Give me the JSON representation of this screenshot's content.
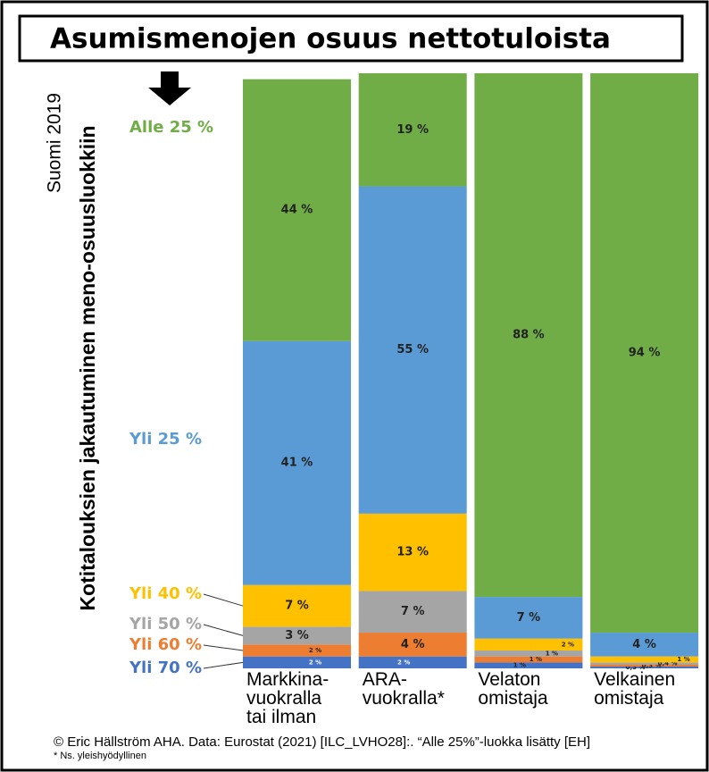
{
  "chart_data": {
    "type": "stacked-bar",
    "title": "Asumismenojen osuus nettotuloista",
    "subtitle": "Suomi 2019",
    "y_label": "Kotitalouksien jakautuminen meno-osuusluokkiin",
    "categories": [
      "Markkina-\nvuokralla\ntai ilman",
      "ARA-\nvuokralla*",
      "Velaton\nomistaja",
      "Velkainen\nomistaja"
    ],
    "ylim": [
      0,
      100
    ],
    "series": [
      {
        "name": "Yli 70 %",
        "color": "#4472c4",
        "values": [
          2,
          2,
          1,
          0.3
        ],
        "value_labels": [
          "2 %",
          "2 %",
          "1 %",
          "0,3 %"
        ]
      },
      {
        "name": "Yli 60 %",
        "color": "#ed7d31",
        "values": [
          2,
          4,
          1,
          0.3
        ],
        "value_labels": [
          "2 %",
          "4 %",
          "1 %",
          "0,3 %"
        ]
      },
      {
        "name": "Yli 50 %",
        "color": "#a5a5a5",
        "values": [
          3,
          7,
          1,
          0.4
        ],
        "value_labels": [
          "3 %",
          "7 %",
          "1 %",
          "0,4 %"
        ]
      },
      {
        "name": "Yli 40 %",
        "color": "#ffc000",
        "values": [
          7,
          13,
          2,
          1
        ],
        "value_labels": [
          "7 %",
          "13 %",
          "2 %",
          "1 %"
        ]
      },
      {
        "name": "Yli 25 %",
        "color": "#5b9bd5",
        "values": [
          41,
          55,
          7,
          4
        ],
        "value_labels": [
          "41 %",
          "55 %",
          "7 %",
          "4 %"
        ]
      },
      {
        "name": "Alle 25 %",
        "color": "#70ad47",
        "values": [
          44,
          19,
          88,
          94
        ],
        "value_labels": [
          "44 %",
          "19 %",
          "88 %",
          "94 %"
        ]
      }
    ],
    "source": "© Eric Hällström  AHA. Data: Eurostat (2021) [ILC_LVHO28]:. “Alle 25%”-luokka lisätty [EH]",
    "note": "* Ns. yleishyödyllinen"
  }
}
